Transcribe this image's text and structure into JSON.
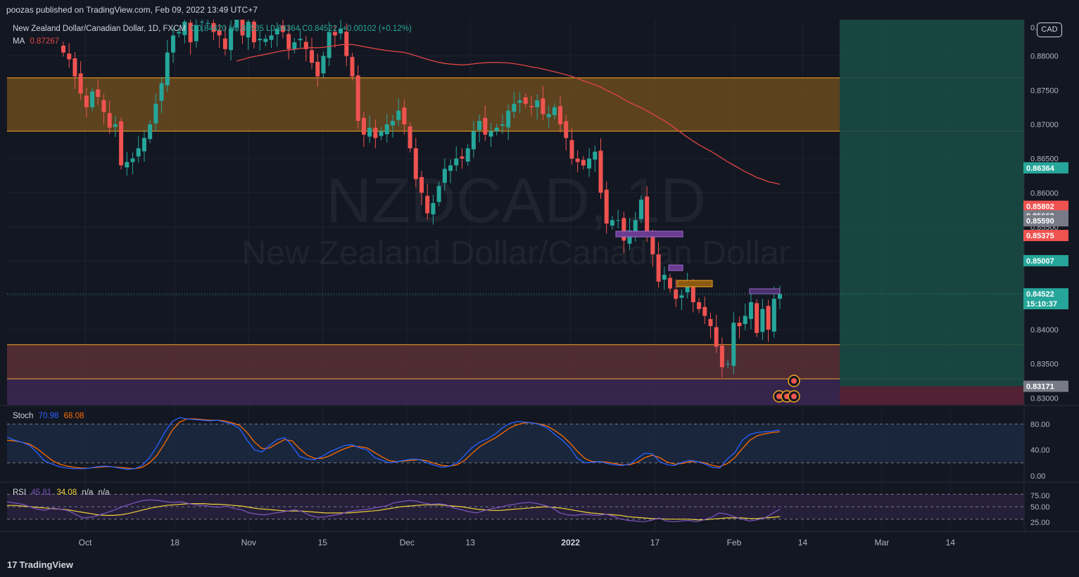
{
  "header": {
    "published": "poozas published on TradingView.com, Feb 09, 2022 13:49 UTC+7"
  },
  "legend": {
    "symbol": "New Zealand Dollar/Canadian Dollar, 1D, FXCM",
    "ohlc": "O0.84420 H0.84535 L0.84364 C0.84522",
    "change": "+0.00102 (+0.12%)",
    "ma_label": "MA",
    "ma_value": "0.87267",
    "stoch_label": "Stoch",
    "stoch_k": "70.98",
    "stoch_d": "68.08",
    "rsi_label": "RSI",
    "rsi_value": "45.81",
    "rsi_ma": "34.08",
    "rsi_na1": "n/a",
    "rsi_na2": "n/a"
  },
  "currency_badge": "CAD",
  "watermark": {
    "ticker": "NZDCAD, 1D",
    "name": "New Zealand Dollar/Canadian Dollar"
  },
  "footer": {
    "brand": "TradingView",
    "logo_mark": "17"
  },
  "colors": {
    "background": "#131722",
    "up": "#26a69a",
    "down": "#ef5350",
    "ma": "#e04646",
    "stoch_k": "#2962ff",
    "stoch_d": "#ff6d00",
    "rsi": "#7e57c2",
    "rsi_ma": "#f0d23c",
    "zone_border": "#f5a623",
    "target_zone": "#1a4a44"
  },
  "chart_data": {
    "type": "candlestick",
    "price_axis": {
      "range": [
        0.829,
        0.8853
      ],
      "ticks": [
        "0.88000",
        "0.87500",
        "0.87000",
        "0.86500",
        "0.86000",
        "0.85500",
        "0.85000",
        "0.84500",
        "0.84000",
        "0.83500",
        "0.83000"
      ],
      "top_tick": "0.885"
    },
    "x_axis": {
      "labels": [
        "Oct",
        "18",
        "Nov",
        "15",
        "Dec",
        "13",
        "2022",
        "17",
        "Feb",
        "14",
        "Mar",
        "14"
      ],
      "label_dates": [
        "2021-10-01",
        "2021-10-18",
        "2021-11-01",
        "2021-11-15",
        "2021-12-01",
        "2021-12-13",
        "2022-01-01",
        "2022-01-17",
        "2022-02-01",
        "2022-02-14",
        "2022-03-01",
        "2022-03-14"
      ]
    },
    "price_labels": [
      {
        "text": "0.86364",
        "price": 0.86364,
        "color": "#26a69a"
      },
      {
        "text": "0.85802",
        "price": 0.85802,
        "color": "#ef5350"
      },
      {
        "text": "0.85662",
        "price": 0.85662,
        "color": "#787b86"
      },
      {
        "text": "0.85590",
        "price": 0.8559,
        "color": "#787b86"
      },
      {
        "text": "0.85375",
        "price": 0.85375,
        "color": "#ef5350"
      },
      {
        "text": "0.85007",
        "price": 0.85007,
        "color": "#26a69a"
      },
      {
        "text": "0.84522",
        "price": 0.84522,
        "color": "#26a69a"
      },
      {
        "text": "15:10:37",
        "price": 0.8442,
        "color": "#26a69a"
      },
      {
        "text": "0.83171",
        "price": 0.83171,
        "color": "#787b86"
      }
    ],
    "zones": [
      {
        "name": "resistance",
        "from": 0.869,
        "to": 0.8768,
        "color": "#6b4a1e"
      },
      {
        "name": "support",
        "from": 0.8328,
        "to": 0.8378,
        "color": "#5a2f35"
      },
      {
        "name": "lower",
        "from": 0.829,
        "to": 0.8328,
        "color": "#3c2752"
      }
    ],
    "close_series": [
      0.8805,
      0.8795,
      0.877,
      0.8745,
      0.8725,
      0.8748,
      0.874,
      0.8718,
      0.8695,
      0.87,
      0.864,
      0.8645,
      0.865,
      0.8665,
      0.868,
      0.87,
      0.873,
      0.876,
      0.8805,
      0.883,
      0.8835,
      0.885,
      0.882,
      0.8845,
      0.885,
      0.8848,
      0.8835,
      0.883,
      0.881,
      0.884,
      0.8855,
      0.883,
      0.885,
      0.882,
      0.8825,
      0.8825,
      0.883,
      0.884,
      0.8835,
      0.881,
      0.882,
      0.8825,
      0.881,
      0.879,
      0.877,
      0.88,
      0.8835,
      0.883,
      0.884,
      0.88,
      0.877,
      0.8705,
      0.8685,
      0.8695,
      0.868,
      0.869,
      0.87,
      0.8705,
      0.872,
      0.87,
      0.8665,
      0.862,
      0.86,
      0.857,
      0.8585,
      0.861,
      0.8635,
      0.864,
      0.865,
      0.865,
      0.8665,
      0.869,
      0.8705,
      0.8685,
      0.869,
      0.8695,
      0.87,
      0.872,
      0.873,
      0.8735,
      0.873,
      0.8725,
      0.8735,
      0.8715,
      0.8715,
      0.8725,
      0.87,
      0.868,
      0.865,
      0.8645,
      0.864,
      0.865,
      0.866,
      0.86,
      0.8555,
      0.856,
      0.856,
      0.853,
      0.8545,
      0.856,
      0.859,
      0.854,
      0.851,
      0.847,
      0.848,
      0.846,
      0.8445,
      0.845,
      0.8465,
      0.844,
      0.843,
      0.842,
      0.8405,
      0.8375,
      0.8345,
      0.835,
      0.841,
      0.8405,
      0.842,
      0.844,
      0.8395,
      0.843,
      0.84,
      0.8445,
      0.8452
    ],
    "stoch": {
      "axis_ticks": [
        "80.00",
        "40.00",
        "0.00"
      ],
      "levels": [
        80,
        20
      ],
      "k": [
        60,
        55,
        52,
        47,
        36,
        23,
        18,
        14,
        12,
        11,
        11,
        12,
        14,
        15,
        14,
        12,
        10,
        11,
        16,
        28,
        46,
        67,
        84,
        90,
        88,
        87,
        86,
        85,
        86,
        83,
        80,
        73,
        55,
        40,
        37,
        47,
        56,
        59,
        46,
        30,
        26,
        25,
        30,
        37,
        42,
        47,
        48,
        43,
        40,
        28,
        24,
        20,
        22,
        24,
        26,
        25,
        20,
        16,
        13,
        15,
        20,
        32,
        44,
        52,
        57,
        64,
        74,
        81,
        84,
        83,
        82,
        79,
        74,
        64,
        55,
        44,
        27,
        20,
        21,
        22,
        19,
        17,
        16,
        18,
        27,
        35,
        34,
        22,
        17,
        16,
        21,
        24,
        22,
        18,
        13,
        12,
        26,
        36,
        55,
        64,
        67,
        68,
        69,
        70.98
      ],
      "d": [
        55,
        54,
        52,
        49,
        42,
        33,
        24,
        18,
        15,
        13,
        12,
        12,
        13,
        14,
        14,
        13,
        12,
        11,
        13,
        20,
        32,
        50,
        70,
        83,
        88,
        88,
        87,
        86,
        86,
        85,
        82,
        78,
        67,
        52,
        42,
        43,
        50,
        56,
        54,
        42,
        32,
        27,
        27,
        31,
        37,
        42,
        46,
        45,
        43,
        36,
        29,
        23,
        22,
        23,
        24,
        25,
        23,
        19,
        16,
        15,
        17,
        24,
        35,
        45,
        52,
        58,
        66,
        74,
        79,
        82,
        82,
        80,
        77,
        70,
        62,
        51,
        38,
        27,
        22,
        22,
        21,
        19,
        17,
        17,
        21,
        28,
        32,
        28,
        21,
        18,
        19,
        22,
        22,
        20,
        16,
        14,
        19,
        28,
        42,
        55,
        62,
        65,
        67,
        68.08
      ]
    },
    "rsi": {
      "axis_ticks": [
        "75.00",
        "50.00",
        "25.00"
      ],
      "levels": [
        70,
        50,
        30
      ],
      "values": [
        58,
        56,
        54,
        50,
        46,
        44,
        48,
        46,
        44,
        38,
        32,
        33,
        36,
        40,
        44,
        49,
        53,
        57,
        60,
        61,
        60,
        58,
        57,
        58,
        55,
        53,
        52,
        50,
        49,
        51,
        47,
        45,
        40,
        38,
        37,
        39,
        41,
        43,
        45,
        42,
        36,
        33,
        34,
        36,
        38,
        42,
        44,
        45,
        47,
        49,
        51,
        56,
        58,
        60,
        59,
        56,
        54,
        55,
        53,
        48,
        45,
        42,
        40,
        44,
        47,
        49,
        52,
        54,
        56,
        57,
        55,
        52,
        48,
        40,
        37,
        36,
        38,
        37,
        36,
        38,
        35,
        30,
        28,
        27,
        26,
        28,
        32,
        27,
        26,
        27,
        28,
        26,
        29,
        33,
        40,
        38,
        34,
        30,
        27,
        29,
        32,
        39,
        45.81
      ],
      "ma": [
        52,
        52,
        51,
        50,
        49,
        48,
        47,
        46,
        45,
        43,
        41,
        39,
        37,
        36,
        36,
        37,
        39,
        42,
        45,
        48,
        50,
        52,
        53,
        54,
        55,
        55,
        55,
        54,
        54,
        53,
        52,
        51,
        49,
        47,
        46,
        45,
        44,
        43,
        43,
        43,
        42,
        41,
        40,
        40,
        40,
        40,
        41,
        42,
        43,
        44,
        46,
        48,
        50,
        51,
        52,
        53,
        53,
        53,
        52,
        51,
        50,
        48,
        46,
        45,
        44,
        44,
        45,
        46,
        47,
        48,
        49,
        50,
        49,
        48,
        46,
        44,
        42,
        40,
        39,
        38,
        37,
        36,
        34,
        33,
        32,
        31,
        31,
        30,
        30,
        30,
        30,
        29,
        29,
        30,
        31,
        32,
        32,
        32,
        31,
        31,
        32,
        33,
        34.08
      ]
    }
  }
}
